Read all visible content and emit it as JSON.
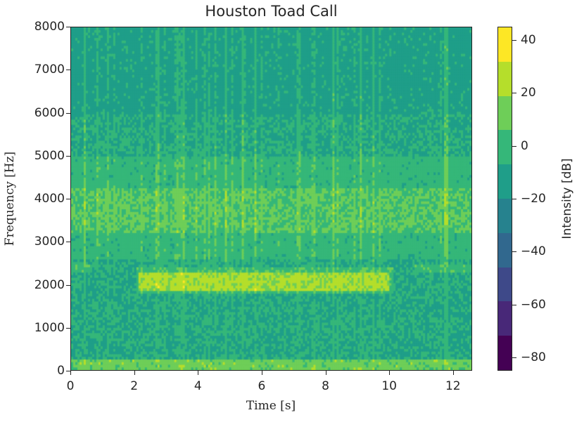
{
  "chart_data": {
    "type": "heatmap",
    "subtype": "spectrogram",
    "title": "Houston Toad Call",
    "xlabel": "Time [s]",
    "ylabel": "Frequency [Hz]",
    "xlim": [
      0,
      12.6
    ],
    "ylim": [
      0,
      8000
    ],
    "xticks": [
      0,
      2,
      4,
      6,
      8,
      10,
      12
    ],
    "yticks": [
      0,
      1000,
      2000,
      3000,
      4000,
      5000,
      6000,
      7000,
      8000
    ],
    "colorbar": {
      "label": "Intensity [dB]",
      "range": [
        -85,
        45
      ],
      "ticks": [
        40,
        20,
        0,
        -20,
        -40,
        -60,
        -80
      ],
      "levels": [
        {
          "color": "#fde725"
        },
        {
          "color": "#b5de2b"
        },
        {
          "color": "#6ece58"
        },
        {
          "color": "#35b779"
        },
        {
          "color": "#1f9e89"
        },
        {
          "color": "#26828e"
        },
        {
          "color": "#31688e"
        },
        {
          "color": "#3e4989"
        },
        {
          "color": "#482878"
        },
        {
          "color": "#440154"
        }
      ]
    },
    "features": [
      {
        "label": "toad call trill band",
        "t_start": 2.1,
        "t_end": 10.0,
        "freq_hz": 2100,
        "intensity_db": 40
      },
      {
        "label": "broadband chorus band",
        "t_start": 0,
        "t_end": 12.6,
        "freq_low_hz": 3200,
        "freq_high_hz": 4300,
        "intensity_db": 25
      },
      {
        "label": "low-frequency energy",
        "freq_low_hz": 0,
        "freq_high_hz": 200,
        "intensity_db": 30
      }
    ],
    "grid": false,
    "legend_position": "right colorbar"
  },
  "title": "Houston Toad Call",
  "xlabel": "Time [s]",
  "ylabel": "Frequency [Hz]",
  "clabel": "Intensity [dB]",
  "yticks": [
    "8000",
    "7000",
    "6000",
    "5000",
    "4000",
    "3000",
    "2000",
    "1000",
    "0"
  ],
  "xticks": [
    "0",
    "2",
    "4",
    "6",
    "8",
    "10",
    "12"
  ],
  "cticks": [
    "40",
    "20",
    "0",
    "−20",
    "−40",
    "−60",
    "−80"
  ]
}
